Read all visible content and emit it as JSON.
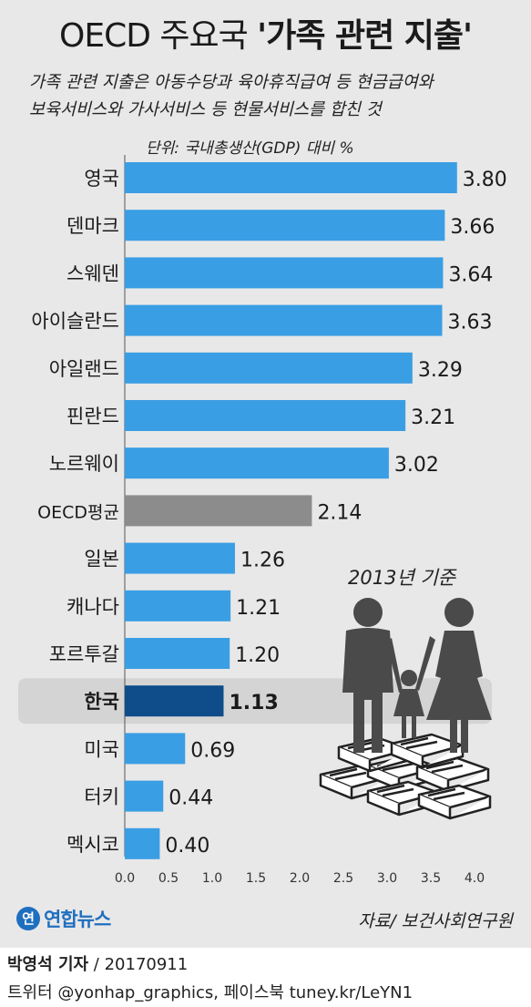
{
  "header": {
    "title_prefix": "OECD 주요국 ",
    "title_highlight": "'가족 관련 지출'",
    "subtitle_line1": "가족 관련 지출은 아동수당과 육아휴직급여 등 현금급여와",
    "subtitle_line2": "보육서비스와 가사서비스 등 현물서비스를 합친 것",
    "unit": "단위: 국내총생산(GDP) 대비 %"
  },
  "basis_note": "2013년 기준",
  "chart_data": {
    "type": "bar",
    "orientation": "horizontal",
    "categories": [
      "영국",
      "덴마크",
      "스웨덴",
      "아이슬란드",
      "아일랜드",
      "핀란드",
      "노르웨이",
      "OECD평균",
      "일본",
      "캐나다",
      "포르투갈",
      "한국",
      "미국",
      "터키",
      "멕시코"
    ],
    "values": [
      3.8,
      3.66,
      3.64,
      3.63,
      3.29,
      3.21,
      3.02,
      2.14,
      1.26,
      1.21,
      1.2,
      1.13,
      0.69,
      0.44,
      0.4
    ],
    "value_labels": [
      "3.80",
      "3.66",
      "3.64",
      "3.63",
      "3.29",
      "3.21",
      "3.02",
      "2.14",
      "1.26",
      "1.21",
      "1.20",
      "1.13",
      "0.69",
      "0.44",
      "0.40"
    ],
    "xlim": [
      0,
      4.0
    ],
    "x_ticks": [
      "0.0",
      "0.5",
      "1.0",
      "1.5",
      "2.0",
      "2.5",
      "3.0",
      "3.5",
      "4.0"
    ],
    "highlight": "한국",
    "average": "OECD평균",
    "colors": {
      "bar": "#3a9ee4",
      "average": "#8c8c8c",
      "highlight": "#0e4d8a",
      "highlight_band": "#d4d4d4"
    }
  },
  "footer": {
    "logo_mark": "연",
    "logo_text": "연합뉴스",
    "source": "자료/ 보건사회연구원",
    "reporter": "박영석 기자",
    "date": " / 20170911",
    "contact": "트위터 @yonhap_graphics, 페이스북 tuney.kr/LeYN1"
  }
}
